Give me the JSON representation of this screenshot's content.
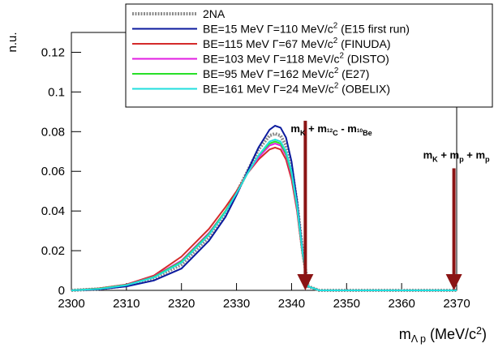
{
  "chart_data": {
    "type": "line",
    "y_label": "n.u.",
    "x_label": [
      {
        "text": "m"
      },
      {
        "text": "Λ p",
        "style": "sub"
      },
      {
        "text": " (MeV/c"
      },
      {
        "text": "2",
        "style": "sup"
      },
      {
        "text": ")"
      }
    ],
    "xlim": [
      2300,
      2370
    ],
    "ylim": [
      0,
      0.13
    ],
    "xticks": [
      2300,
      2310,
      2320,
      2330,
      2340,
      2350,
      2360,
      2370
    ],
    "yticks": [
      0,
      0.02,
      0.04,
      0.06,
      0.08,
      0.1,
      0.12
    ],
    "x": [
      2300,
      2305,
      2310,
      2315,
      2320,
      2325,
      2328,
      2330,
      2332,
      2334,
      2336,
      2337,
      2338,
      2339,
      2340,
      2341,
      2342,
      2343,
      2345,
      2350,
      2360,
      2370
    ],
    "series": [
      {
        "name": [
          {
            "text": "2NA"
          }
        ],
        "color": "#8c8c8c",
        "dashed": true,
        "values": [
          0,
          0.0007,
          0.0025,
          0.006,
          0.013,
          0.027,
          0.039,
          0.049,
          0.06,
          0.071,
          0.078,
          0.079,
          0.078,
          0.073,
          0.062,
          0.044,
          0.02,
          0.002,
          0,
          0,
          0,
          0
        ]
      },
      {
        "name": [
          {
            "text": "BE=15 MeV   Γ=110 MeV/c"
          },
          {
            "text": "2",
            "style": "sup"
          },
          {
            "text": " (E15 first run)"
          }
        ],
        "color": "#0b1a9e",
        "dashed": false,
        "values": [
          0,
          0.0005,
          0.002,
          0.005,
          0.011,
          0.025,
          0.037,
          0.048,
          0.06,
          0.072,
          0.081,
          0.083,
          0.082,
          0.077,
          0.065,
          0.045,
          0.02,
          0.002,
          0,
          0,
          0,
          0
        ]
      },
      {
        "name": [
          {
            "text": "BE=115 MeV   Γ=67 MeV/c"
          },
          {
            "text": "2",
            "style": "sup"
          },
          {
            "text": " (FINUDA)"
          }
        ],
        "color": "#d42a2a",
        "dashed": false,
        "values": [
          0,
          0.001,
          0.003,
          0.0075,
          0.017,
          0.031,
          0.042,
          0.05,
          0.059,
          0.066,
          0.071,
          0.072,
          0.071,
          0.066,
          0.056,
          0.04,
          0.018,
          0.002,
          0,
          0,
          0,
          0
        ]
      },
      {
        "name": [
          {
            "text": "BE=103 MeV   Γ=118 MeV/c"
          },
          {
            "text": "2",
            "style": "sup"
          },
          {
            "text": " (DISTO)"
          }
        ],
        "color": "#e21ee2",
        "dashed": false,
        "values": [
          0,
          0.0008,
          0.0028,
          0.007,
          0.015,
          0.029,
          0.04,
          0.049,
          0.059,
          0.067,
          0.073,
          0.074,
          0.073,
          0.068,
          0.058,
          0.041,
          0.019,
          0.002,
          0,
          0,
          0,
          0
        ]
      },
      {
        "name": [
          {
            "text": "BE=95 MeV   Γ=162 MeV/c"
          },
          {
            "text": "2",
            "style": "sup"
          },
          {
            "text": " (E27)"
          }
        ],
        "color": "#28e028",
        "dashed": false,
        "values": [
          0,
          0.0008,
          0.0027,
          0.0068,
          0.0145,
          0.0285,
          0.04,
          0.049,
          0.059,
          0.068,
          0.074,
          0.075,
          0.074,
          0.069,
          0.059,
          0.042,
          0.019,
          0.002,
          0,
          0,
          0,
          0
        ]
      },
      {
        "name": [
          {
            "text": "BE=161 MeV   Γ=24 MeV/c"
          },
          {
            "text": "2",
            "style": "sup"
          },
          {
            "text": " (OBELIX)"
          }
        ],
        "color": "#22dede",
        "dashed": false,
        "values": [
          0,
          0.0007,
          0.0026,
          0.0065,
          0.014,
          0.028,
          0.0395,
          0.049,
          0.059,
          0.068,
          0.075,
          0.076,
          0.075,
          0.07,
          0.06,
          0.043,
          0.019,
          0.002,
          0,
          0,
          0,
          0
        ]
      }
    ],
    "annotations": [
      {
        "x": 2342.5,
        "y_top": 0.0855,
        "color": "#8b1414",
        "label": [
          {
            "text": "m"
          },
          {
            "text": "K",
            "style": "sub"
          },
          {
            "text": " + m"
          },
          {
            "text": "12",
            "style": "subsup"
          },
          {
            "text": "C",
            "style": "sub"
          },
          {
            "text": " - m"
          },
          {
            "text": "10",
            "style": "subsup"
          },
          {
            "text": "Be",
            "style": "sub"
          }
        ]
      },
      {
        "x": 2369.5,
        "y_top": 0.0615,
        "color": "#8b1414",
        "label": [
          {
            "text": "m"
          },
          {
            "text": "K",
            "style": "sub"
          },
          {
            "text": " + m"
          },
          {
            "text": "p",
            "style": "sub"
          },
          {
            "text": " + m"
          },
          {
            "text": "p",
            "style": "sub"
          }
        ]
      }
    ]
  }
}
